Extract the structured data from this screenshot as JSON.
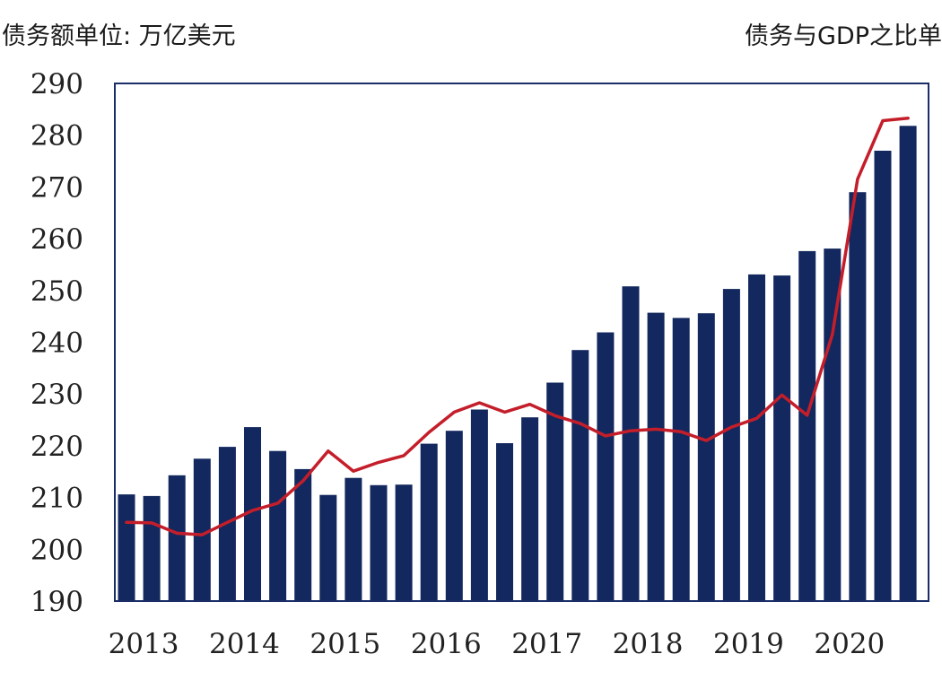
{
  "header": {
    "left_unit": "债务额单位: 万亿美元",
    "right_unit": "债务与GDP之比单"
  },
  "colors": {
    "bar": "#13285e",
    "line": "#c41e2a",
    "frame": "#1b2d66"
  },
  "chart_data": {
    "type": "bar",
    "bar_series": {
      "values": [
        210.6,
        210.3,
        214.3,
        217.5,
        219.8,
        223.6,
        219,
        215.5,
        210.5,
        213.8,
        212.4,
        212.5,
        220.4,
        222.9,
        227,
        220.5,
        225.5,
        232.2,
        238.5,
        241.9,
        250.8,
        245.7,
        244.7,
        245.6,
        250.3,
        253.1,
        252.9,
        257.6,
        258.1,
        269,
        277,
        281.8
      ]
    },
    "line_series": {
      "values": [
        205.2,
        205.1,
        203.1,
        202.8,
        205.2,
        207.5,
        208.9,
        213.2,
        219,
        215.1,
        216.8,
        218.1,
        222.6,
        226.5,
        228.3,
        226.5,
        228,
        225.8,
        224.3,
        221.9,
        222.9,
        223.2,
        222.7,
        221,
        223.6,
        225.3,
        229.8,
        225.9,
        241.5,
        271.5,
        282.8,
        283.3
      ]
    },
    "x_ticks": [
      "2013",
      "2014",
      "2015",
      "2016",
      "2017",
      "2018",
      "2019",
      "2020"
    ],
    "y_ticks": [
      "190",
      "200",
      "210",
      "220",
      "230",
      "240",
      "250",
      "260",
      "270",
      "280",
      "290"
    ],
    "ylim": [
      190,
      290
    ],
    "grid": false,
    "legend": "none"
  }
}
